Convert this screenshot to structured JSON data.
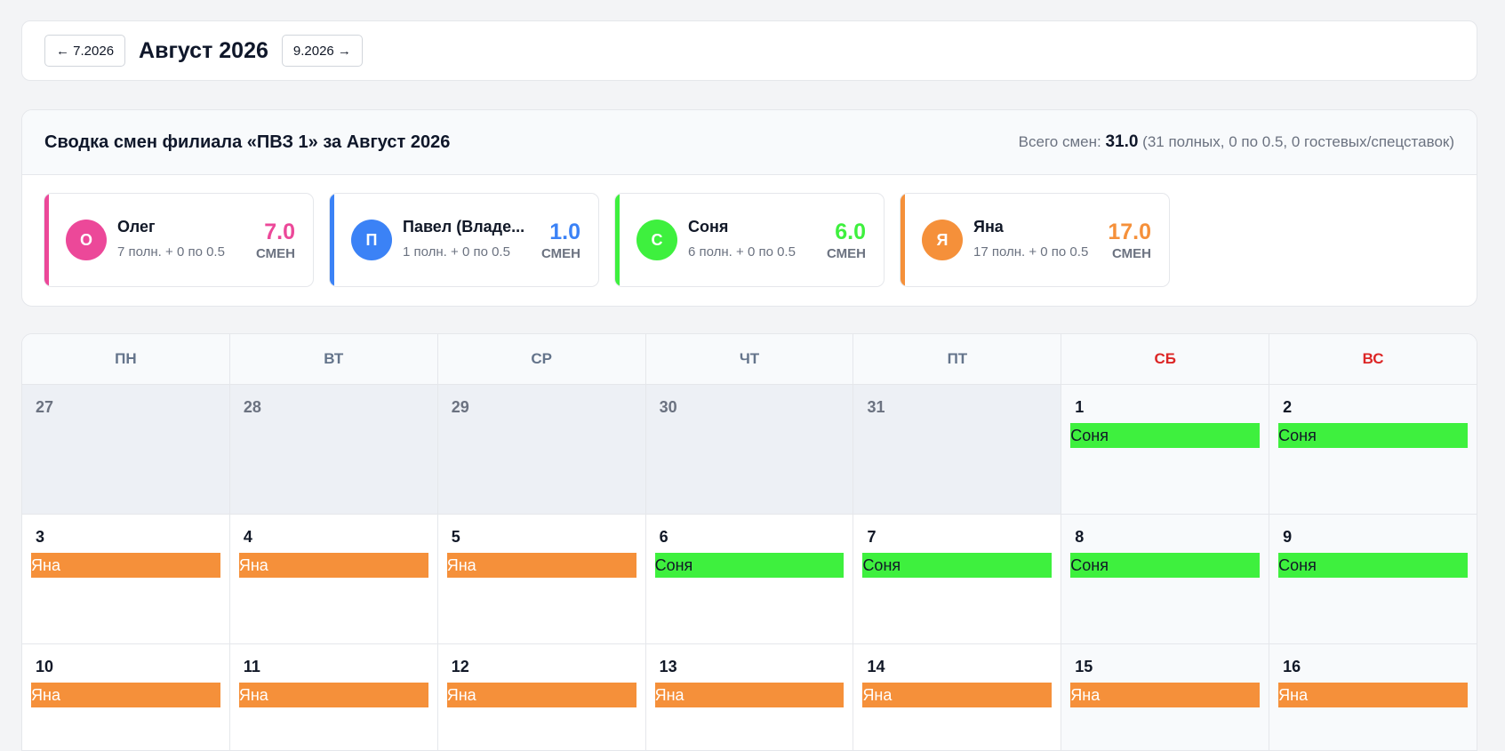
{
  "nav": {
    "prev_label": "← 7.2026",
    "title": "Август 2026",
    "next_label": "9.2026 →"
  },
  "summary": {
    "title": "Сводка смен филиала «ПВЗ 1» за Август 2026",
    "total_prefix": "Всего смен:",
    "total_value": "31.0",
    "total_breakdown": "(31 полных, 0 по 0.5, 0 гостевых/спецставок)",
    "cards": [
      {
        "initial": "О",
        "name": "Олег",
        "detail": "7 полн. + 0 по 0.5",
        "count": "7.0",
        "unit": "СМЕН",
        "color": "#ec4899"
      },
      {
        "initial": "П",
        "name": "Павел (Владе...",
        "detail": "1 полн. + 0 по 0.5",
        "count": "1.0",
        "unit": "СМЕН",
        "color": "#3b82f6"
      },
      {
        "initial": "С",
        "name": "Соня",
        "detail": "6 полн. + 0 по 0.5",
        "count": "6.0",
        "unit": "СМЕН",
        "color": "#3ef03e"
      },
      {
        "initial": "Я",
        "name": "Яна",
        "detail": "17 полн. + 0 по 0.5",
        "count": "17.0",
        "unit": "СМЕН",
        "color": "#f5903a"
      }
    ]
  },
  "calendar": {
    "weekdays": [
      "ПН",
      "ВТ",
      "СР",
      "ЧТ",
      "ПТ",
      "СБ",
      "ВС"
    ],
    "weeks": [
      [
        {
          "day": "27",
          "other": true
        },
        {
          "day": "28",
          "other": true
        },
        {
          "day": "29",
          "other": true
        },
        {
          "day": "30",
          "other": true
        },
        {
          "day": "31",
          "other": true
        },
        {
          "day": "1",
          "shift": "Соня"
        },
        {
          "day": "2",
          "shift": "Соня"
        }
      ],
      [
        {
          "day": "3",
          "shift": "Яна"
        },
        {
          "day": "4",
          "shift": "Яна"
        },
        {
          "day": "5",
          "shift": "Яна"
        },
        {
          "day": "6",
          "shift": "Соня"
        },
        {
          "day": "7",
          "shift": "Соня"
        },
        {
          "day": "8",
          "shift": "Соня"
        },
        {
          "day": "9",
          "shift": "Соня"
        }
      ],
      [
        {
          "day": "10",
          "shift": "Яна"
        },
        {
          "day": "11",
          "shift": "Яна"
        },
        {
          "day": "12",
          "shift": "Яна"
        },
        {
          "day": "13",
          "shift": "Яна"
        },
        {
          "day": "14",
          "shift": "Яна"
        },
        {
          "day": "15",
          "shift": "Яна"
        },
        {
          "day": "16",
          "shift": "Яна"
        }
      ]
    ],
    "shift_colors": {
      "Соня": {
        "bg": "#3ef03e",
        "fg": "#111827"
      },
      "Яна": {
        "bg": "#f5903a",
        "fg": "#ffffff"
      }
    },
    "weekend_color": "#dc2626"
  }
}
